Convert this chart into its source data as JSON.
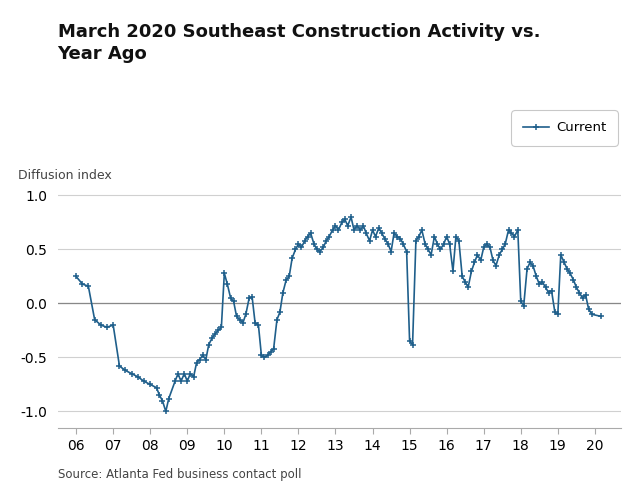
{
  "title": "March 2020 Southeast Construction Activity vs.\nYear Ago",
  "ylabel": "Diffusion index",
  "source": "Source: Atlanta Fed business contact poll",
  "legend_label": "Current",
  "line_color": "#1f5f8b",
  "xlim": [
    2005.5,
    2020.7
  ],
  "ylim": [
    -1.15,
    1.1
  ],
  "yticks": [
    -1.0,
    -0.5,
    0.0,
    0.5,
    1.0
  ],
  "xticks": [
    2006,
    2007,
    2008,
    2009,
    2010,
    2011,
    2012,
    2013,
    2014,
    2015,
    2016,
    2017,
    2018,
    2019,
    2020
  ],
  "xticklabels": [
    "06",
    "07",
    "08",
    "09",
    "10",
    "11",
    "12",
    "13",
    "14",
    "15",
    "16",
    "17",
    "18",
    "19",
    "20"
  ],
  "data": [
    [
      2006.0,
      0.25
    ],
    [
      2006.17,
      0.18
    ],
    [
      2006.33,
      0.16
    ],
    [
      2006.5,
      -0.15
    ],
    [
      2006.67,
      -0.2
    ],
    [
      2006.83,
      -0.22
    ],
    [
      2007.0,
      -0.2
    ],
    [
      2007.17,
      -0.58
    ],
    [
      2007.33,
      -0.62
    ],
    [
      2007.5,
      -0.65
    ],
    [
      2007.67,
      -0.68
    ],
    [
      2007.83,
      -0.72
    ],
    [
      2008.0,
      -0.75
    ],
    [
      2008.17,
      -0.78
    ],
    [
      2008.25,
      -0.85
    ],
    [
      2008.33,
      -0.9
    ],
    [
      2008.42,
      -1.0
    ],
    [
      2008.5,
      -0.88
    ],
    [
      2008.67,
      -0.72
    ],
    [
      2008.75,
      -0.65
    ],
    [
      2008.83,
      -0.72
    ],
    [
      2008.92,
      -0.65
    ],
    [
      2009.0,
      -0.72
    ],
    [
      2009.08,
      -0.65
    ],
    [
      2009.17,
      -0.68
    ],
    [
      2009.25,
      -0.55
    ],
    [
      2009.33,
      -0.52
    ],
    [
      2009.42,
      -0.48
    ],
    [
      2009.5,
      -0.52
    ],
    [
      2009.58,
      -0.38
    ],
    [
      2009.67,
      -0.32
    ],
    [
      2009.75,
      -0.28
    ],
    [
      2009.83,
      -0.25
    ],
    [
      2009.92,
      -0.22
    ],
    [
      2010.0,
      0.28
    ],
    [
      2010.08,
      0.18
    ],
    [
      2010.17,
      0.05
    ],
    [
      2010.25,
      0.02
    ],
    [
      2010.33,
      -0.12
    ],
    [
      2010.42,
      -0.15
    ],
    [
      2010.5,
      -0.18
    ],
    [
      2010.58,
      -0.1
    ],
    [
      2010.67,
      0.05
    ],
    [
      2010.75,
      0.06
    ],
    [
      2010.83,
      -0.18
    ],
    [
      2010.92,
      -0.2
    ],
    [
      2011.0,
      -0.48
    ],
    [
      2011.08,
      -0.5
    ],
    [
      2011.17,
      -0.48
    ],
    [
      2011.25,
      -0.45
    ],
    [
      2011.33,
      -0.42
    ],
    [
      2011.42,
      -0.15
    ],
    [
      2011.5,
      -0.08
    ],
    [
      2011.58,
      0.1
    ],
    [
      2011.67,
      0.22
    ],
    [
      2011.75,
      0.25
    ],
    [
      2011.83,
      0.42
    ],
    [
      2011.92,
      0.5
    ],
    [
      2012.0,
      0.55
    ],
    [
      2012.08,
      0.52
    ],
    [
      2012.17,
      0.58
    ],
    [
      2012.25,
      0.62
    ],
    [
      2012.33,
      0.65
    ],
    [
      2012.42,
      0.55
    ],
    [
      2012.5,
      0.5
    ],
    [
      2012.58,
      0.48
    ],
    [
      2012.67,
      0.52
    ],
    [
      2012.75,
      0.58
    ],
    [
      2012.83,
      0.62
    ],
    [
      2012.92,
      0.68
    ],
    [
      2013.0,
      0.72
    ],
    [
      2013.08,
      0.68
    ],
    [
      2013.17,
      0.75
    ],
    [
      2013.25,
      0.78
    ],
    [
      2013.33,
      0.72
    ],
    [
      2013.42,
      0.8
    ],
    [
      2013.5,
      0.68
    ],
    [
      2013.58,
      0.72
    ],
    [
      2013.67,
      0.68
    ],
    [
      2013.75,
      0.72
    ],
    [
      2013.83,
      0.65
    ],
    [
      2013.92,
      0.58
    ],
    [
      2014.0,
      0.68
    ],
    [
      2014.08,
      0.62
    ],
    [
      2014.17,
      0.7
    ],
    [
      2014.25,
      0.65
    ],
    [
      2014.33,
      0.6
    ],
    [
      2014.42,
      0.55
    ],
    [
      2014.5,
      0.48
    ],
    [
      2014.58,
      0.65
    ],
    [
      2014.67,
      0.62
    ],
    [
      2014.75,
      0.6
    ],
    [
      2014.83,
      0.55
    ],
    [
      2014.92,
      0.48
    ],
    [
      2015.0,
      -0.35
    ],
    [
      2015.08,
      -0.38
    ],
    [
      2015.17,
      0.58
    ],
    [
      2015.25,
      0.62
    ],
    [
      2015.33,
      0.68
    ],
    [
      2015.42,
      0.55
    ],
    [
      2015.5,
      0.5
    ],
    [
      2015.58,
      0.45
    ],
    [
      2015.67,
      0.62
    ],
    [
      2015.75,
      0.55
    ],
    [
      2015.83,
      0.5
    ],
    [
      2015.92,
      0.55
    ],
    [
      2016.0,
      0.62
    ],
    [
      2016.08,
      0.55
    ],
    [
      2016.17,
      0.3
    ],
    [
      2016.25,
      0.62
    ],
    [
      2016.33,
      0.58
    ],
    [
      2016.42,
      0.25
    ],
    [
      2016.5,
      0.2
    ],
    [
      2016.58,
      0.15
    ],
    [
      2016.67,
      0.3
    ],
    [
      2016.75,
      0.38
    ],
    [
      2016.83,
      0.45
    ],
    [
      2016.92,
      0.4
    ],
    [
      2017.0,
      0.52
    ],
    [
      2017.08,
      0.55
    ],
    [
      2017.17,
      0.52
    ],
    [
      2017.25,
      0.4
    ],
    [
      2017.33,
      0.35
    ],
    [
      2017.42,
      0.45
    ],
    [
      2017.5,
      0.5
    ],
    [
      2017.58,
      0.55
    ],
    [
      2017.67,
      0.68
    ],
    [
      2017.75,
      0.65
    ],
    [
      2017.83,
      0.62
    ],
    [
      2017.92,
      0.68
    ],
    [
      2018.0,
      0.02
    ],
    [
      2018.08,
      -0.02
    ],
    [
      2018.17,
      0.32
    ],
    [
      2018.25,
      0.38
    ],
    [
      2018.33,
      0.35
    ],
    [
      2018.42,
      0.25
    ],
    [
      2018.5,
      0.18
    ],
    [
      2018.58,
      0.2
    ],
    [
      2018.67,
      0.15
    ],
    [
      2018.75,
      0.1
    ],
    [
      2018.83,
      0.12
    ],
    [
      2018.92,
      -0.08
    ],
    [
      2019.0,
      -0.1
    ],
    [
      2019.08,
      0.45
    ],
    [
      2019.17,
      0.38
    ],
    [
      2019.25,
      0.32
    ],
    [
      2019.33,
      0.28
    ],
    [
      2019.42,
      0.22
    ],
    [
      2019.5,
      0.15
    ],
    [
      2019.58,
      0.1
    ],
    [
      2019.67,
      0.05
    ],
    [
      2019.75,
      0.08
    ],
    [
      2019.83,
      -0.05
    ],
    [
      2019.92,
      -0.1
    ],
    [
      2020.17,
      -0.12
    ]
  ],
  "background_color": "#ffffff",
  "grid_color": "#d0d0d0",
  "title_fontsize": 13,
  "label_fontsize": 9,
  "tick_fontsize": 10
}
